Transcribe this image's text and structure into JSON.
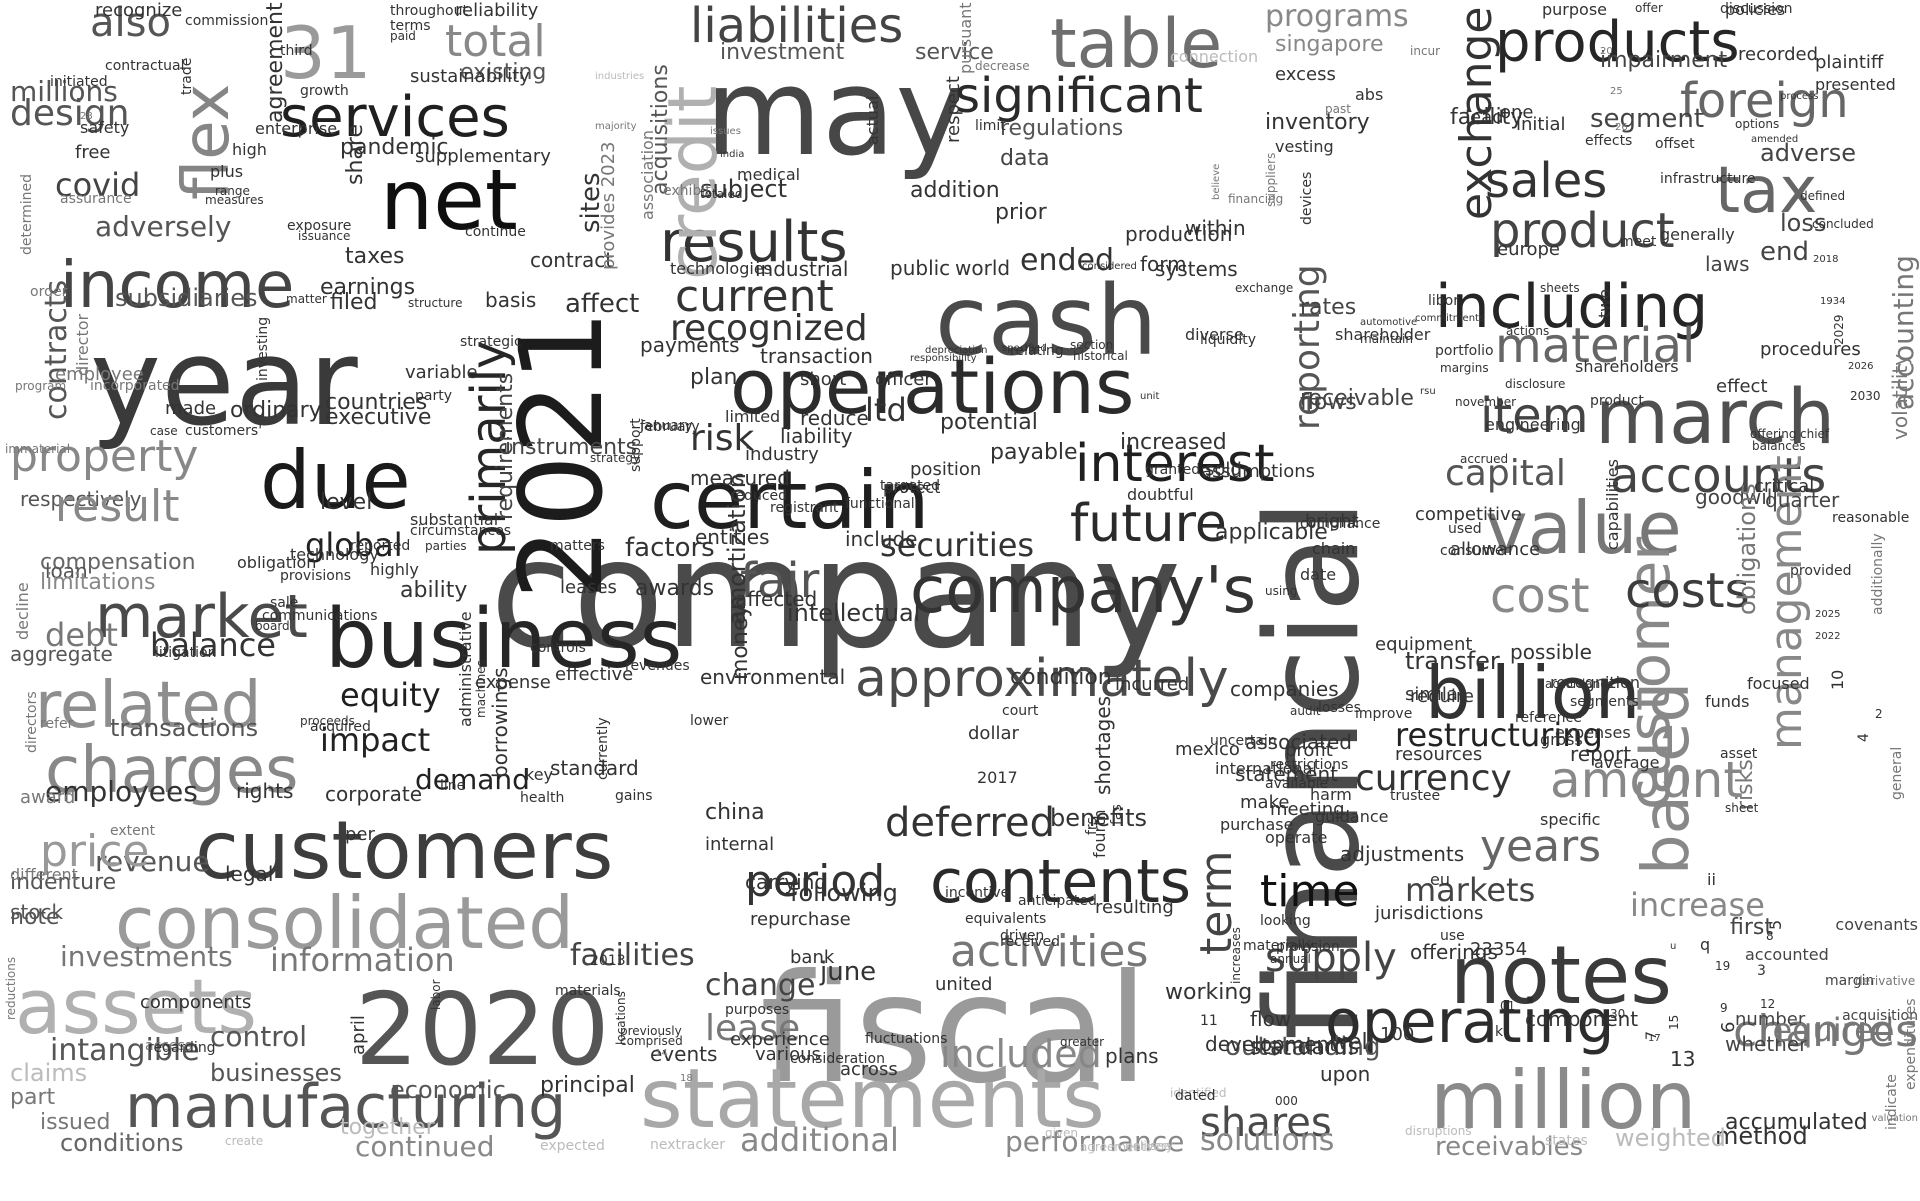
{
  "words": [
    "company",
    "financial",
    "fiscal",
    "year",
    "cash",
    "may",
    "2021",
    "statements",
    "business",
    "certain",
    "operations",
    "2020",
    "net",
    "customers",
    "consolidated",
    "million",
    "notes",
    "company's",
    "march",
    "billion",
    "assets",
    "due",
    "including",
    "value",
    "manufacturing",
    "operating",
    "income",
    "related",
    "contents",
    "products",
    "tax",
    "customer",
    "results",
    "credit",
    "flex",
    "31",
    "services",
    "table",
    "primarily",
    "approximately",
    "future",
    "interest",
    "market",
    "charges",
    "amount",
    "costs",
    "based",
    "accounts",
    "foreign",
    "sales",
    "product",
    "item",
    "significant",
    "liabilities",
    "fair",
    "period",
    "time",
    "activities",
    "term",
    "supply",
    "shares",
    "included",
    "changes",
    "information",
    "cost",
    "equity",
    "current",
    "recognized",
    "material",
    "exchange",
    "management",
    "reporting",
    "capital",
    "restructuring",
    "currency",
    "deferred",
    "markets",
    "increase",
    "years",
    "investments",
    "facilities",
    "lease",
    "change",
    "securities",
    "global",
    "balance",
    "impact",
    "demand",
    "revenue",
    "price",
    "property",
    "debt",
    "employees",
    "transactions",
    "design",
    "covid",
    "adversely",
    "subsidiaries",
    "contracts",
    "compensation",
    "control",
    "businesses",
    "economic",
    "conditions",
    "continued",
    "additional",
    "performance",
    "solutions",
    "receivables",
    "outstanding",
    "programs",
    "singapore",
    "investment",
    "service",
    "existing",
    "total",
    "also",
    "millions",
    "risk",
    "risks",
    "potential",
    "payable",
    "increased",
    "applicable",
    "flows",
    "receivable",
    "rates",
    "inventory",
    "facility",
    "impairment",
    "segment",
    "adverse",
    "loss",
    "end",
    "laws",
    "quarter",
    "goodwill",
    "accounting",
    "volatility",
    "obligations",
    "requirements",
    "instruments",
    "executive",
    "countries",
    "level",
    "taxes",
    "earnings",
    "filed",
    "share",
    "pandemic",
    "regulations",
    "data",
    "addition",
    "subject",
    "prior",
    "ended",
    "form",
    "within",
    "production",
    "systems",
    "industrial",
    "public",
    "world",
    "technologies",
    "contract",
    "basis",
    "affect",
    "payments",
    "plan",
    "transaction",
    "short",
    "officer",
    "limited",
    "reduce",
    "liability",
    "industry",
    "position",
    "ltd",
    "include",
    "entities",
    "factors",
    "awards",
    "ability",
    "leases",
    "intellectual",
    "affected",
    "environmental",
    "effective",
    "expense",
    "condition",
    "incurred",
    "companies",
    "associated",
    "statement",
    "make",
    "purchase",
    "adjustments",
    "internal",
    "china",
    "carrying",
    "following",
    "repurchase",
    "bank",
    "june",
    "united",
    "experience",
    "various",
    "across",
    "events",
    "principal",
    "plans",
    "development",
    "working",
    "standards",
    "flow",
    "upon",
    "well",
    "component",
    "first",
    "number",
    "accounted",
    "whether",
    "required",
    "respectively",
    "result",
    "loan",
    "aggregate",
    "stock",
    "note",
    "intangible",
    "claims",
    "part",
    "issued",
    "indenture",
    "legal",
    "standard",
    "health",
    "corporate",
    "per",
    "rights",
    "borrowings",
    "april",
    "one",
    "lead",
    "initial",
    "discussion",
    "purpose",
    "offer",
    "policies",
    "plaintiff",
    "presented",
    "recorded",
    "effects",
    "offset",
    "infrastructure",
    "meet",
    "generally",
    "europe",
    "libor",
    "portfolio",
    "margins",
    "actions",
    "disclosure",
    "engineering",
    "shareholders",
    "effect",
    "procedures",
    "offering",
    "chief",
    "balances",
    "critical",
    "reasonable",
    "provided",
    "focused",
    "funds",
    "capabilities",
    "additionally",
    "general",
    "covenants",
    "margin",
    "acquisition",
    "indicate",
    "expenditures",
    "valuation",
    "derivative",
    "allowance",
    "consumer",
    "used",
    "bright",
    "competitive",
    "compliance",
    "chain",
    "date",
    "equipment",
    "possible",
    "transfer",
    "improve",
    "losses",
    "audit",
    "resources",
    "similar",
    "require",
    "reference",
    "accordance",
    "recognition",
    "segments",
    "gross",
    "expenses",
    "asset",
    "sheet",
    "report",
    "average",
    "specific",
    "method",
    "accumulated",
    "weighted",
    "states",
    "nextracker",
    "together",
    "create",
    "expected",
    "delivery",
    "agreements",
    "see",
    "given",
    "disruptions",
    "identified",
    "dated",
    "fluctuations",
    "consideration",
    "previously",
    "comprised",
    "locations",
    "labor",
    "materials",
    "2013",
    "driven",
    "received",
    "increases",
    "greater",
    "provision",
    "annual",
    "materially",
    "looking",
    "use",
    "offerings",
    "jurisdictions",
    "resulting",
    "anticipated",
    "equivalents",
    "incentive",
    "fourth",
    "frs",
    "fas",
    "benefits",
    "trustee",
    "harm",
    "guidance",
    "operate",
    "shortages",
    "2017",
    "dollar",
    "court",
    "uncertain",
    "mexico",
    "international",
    "profit",
    "restrictions",
    "available",
    "meeting",
    "administrative",
    "machines",
    "using",
    "line",
    "gains",
    "currently",
    "key",
    "money",
    "amortization",
    "lower",
    "purposes",
    "revenues",
    "controls",
    "protect",
    "targeted",
    "functional",
    "registrant",
    "reduced",
    "measured",
    "granted",
    "sold",
    "assumptions",
    "doubtful",
    "matters",
    "reported",
    "substantial",
    "circumstances",
    "parties",
    "highly",
    "technology",
    "obligation",
    "provisions",
    "limitations",
    "decline",
    "communications",
    "sale",
    "board",
    "litigation",
    "acquired",
    "proceeds",
    "refer",
    "directors",
    "award",
    "extent",
    "different",
    "reductions",
    "access",
    "components",
    "regarding",
    "free",
    "safety",
    "enterprise",
    "high",
    "plus",
    "range",
    "measures",
    "assurance",
    "determined",
    "order",
    "employee",
    "director",
    "incorporated",
    "program",
    "immaterial",
    "made",
    "ordinary",
    "case",
    "customers'",
    "party",
    "strategic",
    "structure",
    "variable",
    "investing",
    "matter",
    "exposure",
    "continue",
    "issuance",
    "supplementary",
    "sustainability",
    "agreement",
    "third",
    "growth",
    "initiated",
    "contractual",
    "trade",
    "throughout",
    "terms",
    "paid",
    "commission",
    "reliability",
    "recognize",
    "provides 2023",
    "association",
    "acquisitions",
    "sites",
    "exhibit",
    "totaled",
    "india",
    "respect",
    "actual",
    "medical",
    "limit",
    "decrease",
    "pursuant",
    "issues",
    "connection",
    "industries",
    "excess",
    "incur",
    "abs",
    "past",
    "vesting",
    "majority",
    "financing",
    "believe",
    "suppliers",
    "devices",
    "exchange",
    "considered",
    "historical",
    "section",
    "shareholder",
    "automotive",
    "maintain",
    "commitments",
    "diverse",
    "liquidity",
    "specified",
    "relating",
    "depreciation",
    "responsibility",
    "strategy",
    "january",
    "february",
    "support",
    "unit",
    "rsu",
    "november",
    "accrued",
    "two",
    "sheets",
    "options",
    "amended",
    "process",
    "defined",
    "concluded",
    "2018",
    "1934",
    "2029",
    "2026",
    "2030",
    "2025",
    "2022",
    "10",
    "4",
    "2",
    "8",
    "3",
    "5",
    "6",
    "7",
    "9",
    "19",
    "15",
    "17",
    "12",
    "14",
    "18",
    "20",
    "25",
    "26",
    "28",
    "30",
    "01",
    "11",
    "000",
    "13",
    "23354",
    "k",
    "q",
    "u",
    "ii",
    "eu",
    "100",
    "product"
  ]
}
